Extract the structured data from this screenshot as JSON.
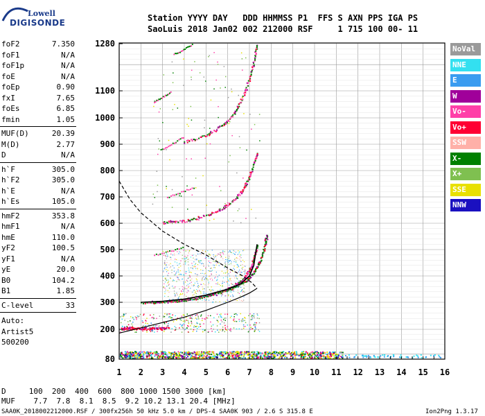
{
  "logo": {
    "top": "Lowell",
    "main": "DIGISONDE"
  },
  "header": {
    "line1": "Station YYYY DAY   DDD HHMMSS P1  FFS S AXN PPS IGA PS",
    "line2": "SaoLuis 2018 Jan02 002 212000 RSF     1 715 100 00- 11"
  },
  "params_group1": [
    {
      "name": "foF2",
      "value": "7.350"
    },
    {
      "name": "foF1",
      "value": "N/A"
    },
    {
      "name": "foF1p",
      "value": "N/A"
    },
    {
      "name": "foE",
      "value": "N/A"
    },
    {
      "name": "foEp",
      "value": "0.90"
    },
    {
      "name": "fxI",
      "value": "7.65"
    },
    {
      "name": "foEs",
      "value": "6.85"
    },
    {
      "name": "fmin",
      "value": "1.05"
    }
  ],
  "params_group2": [
    {
      "name": "MUF(D)",
      "value": "20.39"
    },
    {
      "name": "M(D)",
      "value": "2.77"
    },
    {
      "name": "D",
      "value": "N/A"
    }
  ],
  "params_group3": [
    {
      "name": "h`F",
      "value": "305.0"
    },
    {
      "name": "h`F2",
      "value": "305.0"
    },
    {
      "name": "h`E",
      "value": "N/A"
    },
    {
      "name": "h`Es",
      "value": "105.0"
    }
  ],
  "params_group4": [
    {
      "name": "hmF2",
      "value": "353.8"
    },
    {
      "name": "hmF1",
      "value": "N/A"
    },
    {
      "name": "hmE",
      "value": "110.0"
    },
    {
      "name": "yF2",
      "value": "100.5"
    },
    {
      "name": "yF1",
      "value": "N/A"
    },
    {
      "name": "yE",
      "value": "20.0"
    },
    {
      "name": "B0",
      "value": "104.2"
    },
    {
      "name": "B1",
      "value": "1.85"
    }
  ],
  "clevel": {
    "name": "C-level",
    "value": "33"
  },
  "autoscaler": [
    "Auto:",
    "Artist5",
    "500200"
  ],
  "legend": [
    {
      "label": "NoVal",
      "color": "#9a9a9a"
    },
    {
      "label": "NNE",
      "color": "#33e0f0"
    },
    {
      "label": "E",
      "color": "#3a9cf0"
    },
    {
      "label": "W",
      "color": "#a0009a"
    },
    {
      "label": "Vo-",
      "color": "#ff3fa8"
    },
    {
      "label": "Vo+",
      "color": "#ff0033"
    },
    {
      "label": "SSW",
      "color": "#ffb0a8"
    },
    {
      "label": "X-",
      "color": "#008000"
    },
    {
      "label": "X+",
      "color": "#7fc050"
    },
    {
      "label": "SSE",
      "color": "#e8e000"
    },
    {
      "label": "NNW",
      "color": "#1a10c0"
    }
  ],
  "footer": {
    "d_row": "D     100  200  400  600  800 1000 1500 3000 [km]",
    "muf_row": "MUF    7.7  7.8  8.1  8.5  9.2 10.2 13.1 20.4 [MHz]"
  },
  "bottom": {
    "left": "SAA0K_2018002212000.RSF / 300fx256h 50 kHz 5.0 km / DPS-4 SAA0K 903 / 2.6 S 315.8 E",
    "right": "Ion2Png 1.3.17"
  },
  "chart_data": {
    "type": "scatter",
    "title": "",
    "xlabel": "",
    "ylabel": "",
    "x_unit": "MHz",
    "y_unit": "km",
    "xlim": [
      1,
      16
    ],
    "ylim": [
      80,
      1280
    ],
    "x_ticks": [
      1,
      2,
      3,
      4,
      5,
      6,
      7,
      8,
      9,
      10,
      11,
      12,
      13,
      14,
      15,
      16
    ],
    "y_ticks": [
      80,
      200,
      300,
      400,
      500,
      600,
      700,
      800,
      900,
      1000,
      1100,
      1280
    ],
    "grid": true,
    "traces": [
      {
        "name": "O-trace F2 first hop",
        "mode": "Vo-",
        "points": [
          [
            2.0,
            300
          ],
          [
            3.0,
            303
          ],
          [
            4.0,
            310
          ],
          [
            5.0,
            325
          ],
          [
            5.8,
            345
          ],
          [
            6.3,
            365
          ],
          [
            6.7,
            390
          ],
          [
            7.0,
            425
          ],
          [
            7.2,
            470
          ],
          [
            7.35,
            520
          ]
        ]
      },
      {
        "name": "X-trace F2 first hop",
        "mode": "X-",
        "points": [
          [
            2.6,
            302
          ],
          [
            3.5,
            306
          ],
          [
            4.5,
            315
          ],
          [
            5.5,
            335
          ],
          [
            6.2,
            355
          ],
          [
            6.8,
            380
          ],
          [
            7.2,
            415
          ],
          [
            7.5,
            460
          ],
          [
            7.7,
            520
          ],
          [
            7.8,
            560
          ]
        ]
      },
      {
        "name": "second hop",
        "mode": "Vo-",
        "points": [
          [
            3.0,
            605
          ],
          [
            4.0,
            610
          ],
          [
            5.0,
            630
          ],
          [
            5.8,
            660
          ],
          [
            6.3,
            690
          ],
          [
            6.7,
            730
          ],
          [
            7.0,
            780
          ],
          [
            7.2,
            830
          ],
          [
            7.35,
            870
          ]
        ]
      },
      {
        "name": "third hop",
        "mode": "Vo-",
        "points": [
          [
            4.0,
            910
          ],
          [
            5.0,
            935
          ],
          [
            5.8,
            975
          ],
          [
            6.3,
            1020
          ],
          [
            6.7,
            1080
          ],
          [
            7.0,
            1150
          ],
          [
            7.2,
            1220
          ],
          [
            7.35,
            1280
          ]
        ]
      },
      {
        "name": "profile",
        "mode": "profile",
        "points": [
          [
            1.0,
            185
          ],
          [
            2.5,
            215
          ],
          [
            4.0,
            245
          ],
          [
            5.0,
            270
          ],
          [
            6.0,
            300
          ],
          [
            6.6,
            320
          ],
          [
            7.0,
            335
          ],
          [
            7.2,
            345
          ],
          [
            7.35,
            353
          ]
        ]
      },
      {
        "name": "profile dashed",
        "mode": "profile-dashed",
        "points": [
          [
            1.0,
            760
          ],
          [
            1.5,
            690
          ],
          [
            2.0,
            640
          ],
          [
            3.0,
            570
          ],
          [
            4.0,
            520
          ],
          [
            5.0,
            480
          ],
          [
            6.0,
            430
          ],
          [
            6.7,
            400
          ],
          [
            7.1,
            375
          ],
          [
            7.35,
            353
          ]
        ]
      },
      {
        "name": "Es trace",
        "mode": "mixed",
        "points": [
          [
            1.0,
            95
          ],
          [
            3.0,
            100
          ],
          [
            5.0,
            105
          ],
          [
            7.0,
            105
          ],
          [
            9.0,
            100
          ],
          [
            11.0,
            95
          ]
        ]
      }
    ]
  }
}
